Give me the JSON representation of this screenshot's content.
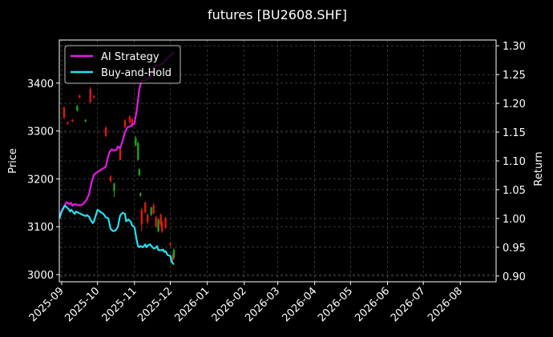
{
  "chart_data": {
    "type": "line",
    "title": "futures [BU2608.SHF]",
    "ylabel_left": "Price",
    "ylabel_right": "Return",
    "xlim": [
      "2025-08-30",
      "2026-08-31"
    ],
    "ylim_left": [
      2985,
      3490
    ],
    "ylim_right": [
      0.89,
      1.31
    ],
    "x_tick_labels": [
      "2025-09",
      "2025-10",
      "2025-11",
      "2025-12",
      "2026-01",
      "2026-02",
      "2026-03",
      "2026-04",
      "2026-05",
      "2026-06",
      "2026-07",
      "2026-08"
    ],
    "x_tick_dates": [
      "2025-09-01",
      "2025-10-01",
      "2025-11-01",
      "2025-12-01",
      "2026-01-01",
      "2026-02-01",
      "2026-03-01",
      "2026-04-01",
      "2026-05-01",
      "2026-06-01",
      "2026-07-01",
      "2026-08-01"
    ],
    "y_left_ticks": [
      3000,
      3100,
      3200,
      3300,
      3400
    ],
    "y_right_ticks": [
      0.9,
      0.95,
      1.0,
      1.05,
      1.1,
      1.15,
      1.2,
      1.25,
      1.3
    ],
    "grid": true,
    "legend_position": "top-left",
    "series": [
      {
        "name": "AI Strategy",
        "color": "#e619e6",
        "axis": "right",
        "x": [
          "2025-08-30",
          "2025-09-02",
          "2025-09-04",
          "2025-09-05",
          "2025-09-08",
          "2025-09-09",
          "2025-09-10",
          "2025-09-12",
          "2025-09-15",
          "2025-09-17",
          "2025-09-19",
          "2025-09-22",
          "2025-09-24",
          "2025-09-26",
          "2025-09-28",
          "2025-10-02",
          "2025-10-05",
          "2025-10-08",
          "2025-10-09",
          "2025-10-11",
          "2025-10-13",
          "2025-10-15",
          "2025-10-17",
          "2025-10-18",
          "2025-10-20",
          "2025-10-22",
          "2025-10-24",
          "2025-10-26",
          "2025-10-28",
          "2025-11-01",
          "2025-11-03",
          "2025-11-05",
          "2025-11-07",
          "2025-11-10",
          "2025-11-14",
          "2025-11-18",
          "2025-11-21",
          "2025-11-25",
          "2025-11-27",
          "2025-11-29",
          "2025-12-02",
          "2025-12-04"
        ],
        "values": [
          1.005,
          1.018,
          1.025,
          1.028,
          1.025,
          1.027,
          1.022,
          1.025,
          1.023,
          1.023,
          1.025,
          1.033,
          1.042,
          1.063,
          1.076,
          1.082,
          1.086,
          1.09,
          1.1,
          1.115,
          1.12,
          1.118,
          1.12,
          1.125,
          1.122,
          1.135,
          1.15,
          1.158,
          1.16,
          1.165,
          1.19,
          1.225,
          1.24,
          1.24,
          1.245,
          1.265,
          1.265,
          1.27,
          1.275,
          1.28,
          1.285,
          1.29
        ]
      },
      {
        "name": "Buy-and-Hold",
        "color": "#22e1f0",
        "axis": "right",
        "x": [
          "2025-08-30",
          "2025-09-01",
          "2025-09-03",
          "2025-09-04",
          "2025-09-05",
          "2025-09-07",
          "2025-09-08",
          "2025-09-09",
          "2025-09-11",
          "2025-09-12",
          "2025-09-13",
          "2025-09-15",
          "2025-09-17",
          "2025-09-19",
          "2025-09-21",
          "2025-09-22",
          "2025-09-24",
          "2025-09-25",
          "2025-09-27",
          "2025-09-28",
          "2025-10-01",
          "2025-10-03",
          "2025-10-06",
          "2025-10-08",
          "2025-10-10",
          "2025-10-12",
          "2025-10-14",
          "2025-10-16",
          "2025-10-18",
          "2025-10-20",
          "2025-10-22",
          "2025-10-24",
          "2025-10-25",
          "2025-10-27",
          "2025-10-29",
          "2025-10-30",
          "2025-11-01",
          "2025-11-03",
          "2025-11-04",
          "2025-11-05",
          "2025-11-06",
          "2025-11-08",
          "2025-11-10",
          "2025-11-11",
          "2025-11-12",
          "2025-11-14",
          "2025-11-17",
          "2025-11-18",
          "2025-11-20",
          "2025-11-21",
          "2025-11-24",
          "2025-11-25",
          "2025-11-26",
          "2025-11-27",
          "2025-11-29",
          "2025-12-01",
          "2025-12-02",
          "2025-12-04"
        ],
        "values": [
          1.0,
          1.012,
          1.02,
          1.022,
          1.02,
          1.016,
          1.012,
          1.015,
          1.01,
          1.008,
          1.012,
          1.01,
          1.008,
          1.006,
          1.004,
          1.006,
          1.003,
          0.998,
          0.992,
          0.995,
          1.015,
          1.012,
          1.008,
          1.002,
          1.0,
          0.982,
          0.978,
          0.979,
          0.985,
          1.005,
          1.01,
          1.008,
          0.995,
          0.998,
          0.994,
          0.988,
          0.985,
          0.96,
          0.952,
          0.95,
          0.952,
          0.95,
          0.955,
          0.95,
          0.953,
          0.955,
          0.948,
          0.948,
          0.952,
          0.945,
          0.945,
          0.946,
          0.942,
          0.943,
          0.936,
          0.935,
          0.925,
          0.92
        ]
      }
    ],
    "candles": [
      {
        "x": "2025-09-03",
        "o": 3349,
        "c": 3328,
        "h": 3352,
        "l": 3325
      },
      {
        "x": "2025-09-06",
        "o": 3318,
        "c": 3315,
        "h": 3320,
        "l": 3313
      },
      {
        "x": "2025-09-10",
        "o": 3323,
        "c": 3320,
        "h": 3325,
        "l": 3318
      },
      {
        "x": "2025-09-14",
        "o": 3343,
        "c": 3352,
        "h": 3354,
        "l": 3340
      },
      {
        "x": "2025-09-16",
        "o": 3374,
        "c": 3370,
        "h": 3376,
        "l": 3368
      },
      {
        "x": "2025-09-21",
        "o": 3320,
        "c": 3323,
        "h": 3325,
        "l": 3318
      },
      {
        "x": "2025-09-25",
        "o": 3388,
        "c": 3360,
        "h": 3392,
        "l": 3358
      },
      {
        "x": "2025-09-28",
        "o": 3373,
        "c": 3370,
        "h": 3376,
        "l": 3368
      },
      {
        "x": "2025-10-08",
        "o": 3307,
        "c": 3290,
        "h": 3310,
        "l": 3287
      },
      {
        "x": "2025-10-12",
        "o": 3205,
        "c": 3195,
        "h": 3208,
        "l": 3192
      },
      {
        "x": "2025-10-15",
        "o": 3175,
        "c": 3190,
        "h": 3192,
        "l": 3162
      },
      {
        "x": "2025-10-20",
        "o": 3262,
        "c": 3240,
        "h": 3264,
        "l": 3238
      },
      {
        "x": "2025-10-24",
        "o": 3322,
        "c": 3308,
        "h": 3325,
        "l": 3306
      },
      {
        "x": "2025-10-28",
        "o": 3330,
        "c": 3318,
        "h": 3333,
        "l": 3316
      },
      {
        "x": "2025-10-30",
        "o": 3325,
        "c": 3310,
        "h": 3328,
        "l": 3308
      },
      {
        "x": "2025-11-02",
        "o": 3270,
        "c": 3285,
        "h": 3290,
        "l": 3268
      },
      {
        "x": "2025-11-04",
        "o": 3240,
        "c": 3275,
        "h": 3278,
        "l": 3238
      },
      {
        "x": "2025-11-05",
        "o": 3208,
        "c": 3220,
        "h": 3222,
        "l": 3205
      },
      {
        "x": "2025-11-06",
        "o": 3165,
        "c": 3170,
        "h": 3172,
        "l": 3162
      },
      {
        "x": "2025-11-07",
        "o": 3135,
        "c": 3105,
        "h": 3140,
        "l": 3090
      },
      {
        "x": "2025-11-10",
        "o": 3150,
        "c": 3130,
        "h": 3153,
        "l": 3128
      },
      {
        "x": "2025-11-12",
        "o": 3125,
        "c": 3110,
        "h": 3128,
        "l": 3105
      },
      {
        "x": "2025-11-15",
        "o": 3125,
        "c": 3140,
        "h": 3142,
        "l": 3122
      },
      {
        "x": "2025-11-17",
        "o": 3145,
        "c": 3128,
        "h": 3150,
        "l": 3125
      },
      {
        "x": "2025-11-19",
        "o": 3120,
        "c": 3100,
        "h": 3123,
        "l": 3098
      },
      {
        "x": "2025-11-21",
        "o": 3090,
        "c": 3115,
        "h": 3118,
        "l": 3088
      },
      {
        "x": "2025-11-23",
        "o": 3125,
        "c": 3105,
        "h": 3128,
        "l": 3100
      },
      {
        "x": "2025-11-24",
        "o": 3110,
        "c": 3090,
        "h": 3113,
        "l": 3087
      },
      {
        "x": "2025-11-27",
        "o": 3118,
        "c": 3098,
        "h": 3120,
        "l": 3095
      },
      {
        "x": "2025-12-01",
        "o": 3065,
        "c": 3062,
        "h": 3068,
        "l": 3058
      },
      {
        "x": "2025-12-03",
        "o": 3040,
        "c": 3030,
        "h": 3045,
        "l": 3025
      },
      {
        "x": "2025-12-04",
        "o": 3035,
        "c": 3052,
        "h": 3055,
        "l": 3032
      }
    ]
  }
}
